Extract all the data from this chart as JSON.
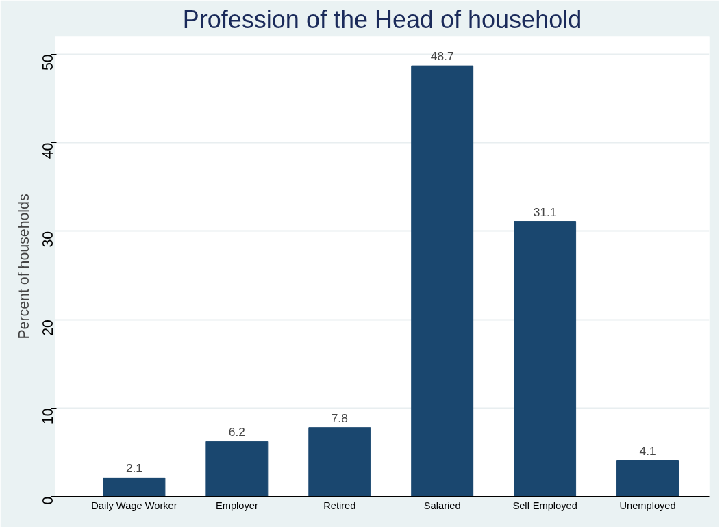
{
  "chart_data": {
    "type": "bar",
    "title": "Profession of the Head of household",
    "ylabel": "Percent of households",
    "categories": [
      "Daily Wage Worker",
      "Employer",
      "Retired",
      "Salaried",
      "Self Employed",
      "Unemployed"
    ],
    "values": [
      2.1,
      6.2,
      7.8,
      48.7,
      31.1,
      4.1
    ],
    "color": "#1a476f",
    "data_labels": true,
    "ylim": [
      0,
      52
    ],
    "yticks": [
      0,
      10,
      20,
      30,
      40,
      50
    ],
    "grid": "y"
  }
}
